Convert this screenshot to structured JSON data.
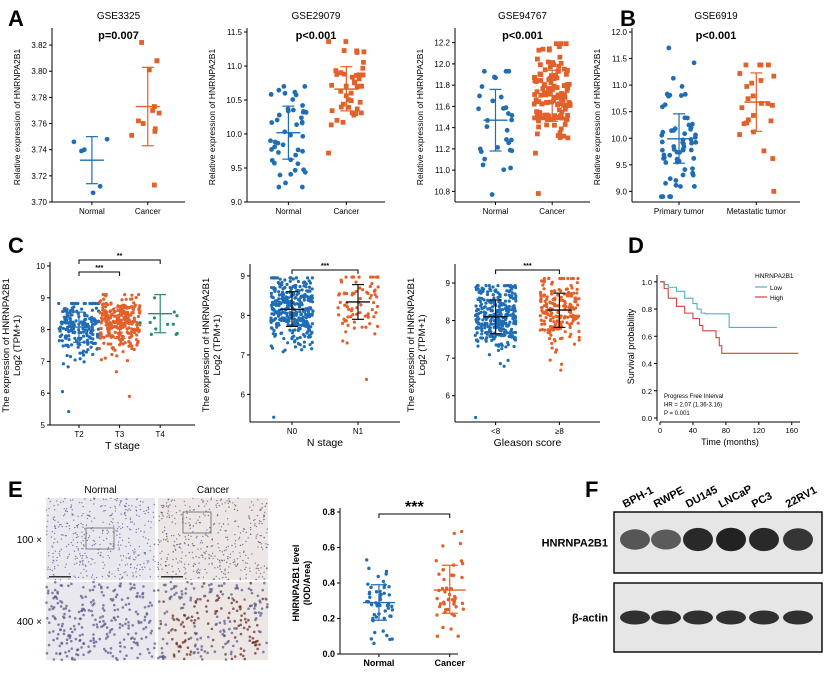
{
  "panel_letters": [
    "A",
    "B",
    "C",
    "D",
    "E",
    "F"
  ],
  "colors": {
    "blue": "#1f6db5",
    "orange": "#e2612a",
    "green": "#2a8c6e",
    "low": "#4fb3bf",
    "high": "#c9473f"
  },
  "chart_data": [
    {
      "id": "A1",
      "type": "scatter",
      "title": "GSE3325",
      "annotation": "p=0.007",
      "ylabel": "Relative expression of HNRNPA2B1",
      "ylim": [
        3.7,
        3.83
      ],
      "yticks": [
        3.7,
        3.72,
        3.74,
        3.76,
        3.78,
        3.8,
        3.82
      ],
      "groups": [
        {
          "name": "Normal",
          "color": "blue",
          "mean": 3.732,
          "err": [
            3.714,
            3.75
          ],
          "points": [
            3.746,
            3.748,
            3.74,
            3.739,
            3.712,
            3.707
          ]
        },
        {
          "name": "Cancer",
          "color": "orange",
          "mean": 3.773,
          "err": [
            3.743,
            3.803
          ],
          "points": [
            3.822,
            3.808,
            3.808,
            3.801,
            3.773,
            3.77,
            3.768,
            3.762,
            3.76,
            3.756,
            3.754,
            3.751,
            3.713
          ]
        }
      ]
    },
    {
      "id": "A2",
      "type": "scatter",
      "title": "GSE29079",
      "annotation": "p<0.001",
      "ylabel": "Relative expression of HNRNPA2B1",
      "ylim": [
        9.0,
        11.5
      ],
      "yticks": [
        9.0,
        9.5,
        10.0,
        10.5,
        11.0,
        11.5
      ],
      "groups": [
        {
          "name": "Normal",
          "color": "blue",
          "mean": 10.02,
          "err": [
            9.63,
            10.41
          ],
          "n": 47,
          "range": [
            9.22,
            10.7
          ]
        },
        {
          "name": "Cancer",
          "color": "orange",
          "mean": 10.66,
          "err": [
            10.34,
            10.99
          ],
          "n": 45,
          "range": [
            9.72,
            11.36
          ]
        }
      ]
    },
    {
      "id": "A3",
      "type": "scatter",
      "title": "GSE94767",
      "annotation": "p<0.001",
      "ylabel": "Relative expression of HNRNPA2B1",
      "ylim": [
        10.7,
        12.3
      ],
      "yticks": [
        10.8,
        11.0,
        11.2,
        11.4,
        11.6,
        11.8,
        12.0,
        12.2
      ],
      "groups": [
        {
          "name": "Normal",
          "color": "blue",
          "mean": 11.47,
          "err": [
            11.18,
            11.76
          ],
          "n": 31,
          "range": [
            10.77,
            11.93
          ]
        },
        {
          "name": "Cancer",
          "color": "orange",
          "mean": 11.7,
          "err": [
            11.46,
            11.94
          ],
          "n": 130,
          "range": [
            10.78,
            12.19
          ]
        }
      ]
    },
    {
      "id": "B",
      "type": "scatter",
      "title": "GSE6919",
      "annotation": "p<0.001",
      "ylabel": "Relative expression of HNRNPA2B1",
      "ylim": [
        8.8,
        12.0
      ],
      "yticks": [
        9.0,
        9.5,
        10.0,
        10.5,
        11.0,
        11.5,
        12.0
      ],
      "groups": [
        {
          "name": "Primary tumor",
          "color": "blue",
          "mean": 9.99,
          "err": [
            9.53,
            10.46
          ],
          "n": 65,
          "range": [
            8.9,
            11.7
          ]
        },
        {
          "name": "Metastatic tumor",
          "color": "orange",
          "mean": 10.68,
          "err": [
            10.13,
            11.23
          ],
          "n": 25,
          "range": [
            9.0,
            11.38
          ]
        }
      ]
    },
    {
      "id": "C1",
      "type": "scatter",
      "xlabel": "T stage",
      "ylabel": "The expression of HNRNPA2B1",
      "ylabel2": "Log2 (TPM+1)",
      "ylim": [
        5,
        10
      ],
      "yticks": [
        5,
        6,
        7,
        8,
        9,
        10
      ],
      "groups": [
        {
          "name": "T2",
          "color": "blue",
          "mean": 8.08,
          "err": [
            7.6,
            8.55
          ],
          "n": 190,
          "range": [
            5.42,
            8.82
          ]
        },
        {
          "name": "T3",
          "color": "orange",
          "mean": 8.2,
          "err": [
            7.72,
            8.68
          ],
          "n": 250,
          "range": [
            5.9,
            9.1
          ]
        },
        {
          "name": "T4",
          "color": "green",
          "mean": 8.5,
          "err": [
            7.9,
            9.1
          ],
          "n": 12,
          "range": [
            7.85,
            9.0
          ]
        }
      ],
      "significance": [
        {
          "from": 0,
          "to": 1,
          "label": "***"
        },
        {
          "from": 0,
          "to": 2,
          "label": "**"
        }
      ]
    },
    {
      "id": "C2",
      "type": "scatter",
      "xlabel": "N stage",
      "ylabel": "The expression of HNRNPA2B1",
      "ylabel2": "Log2 (TPM+1)",
      "ylim": [
        5.3,
        9.2
      ],
      "yticks": [
        6,
        7,
        8,
        9
      ],
      "groups": [
        {
          "name": "N0",
          "color": "blue",
          "mean": 8.15,
          "err": [
            7.72,
            8.6
          ],
          "n": 340,
          "range": [
            5.42,
            8.95
          ]
        },
        {
          "name": "N1",
          "color": "orange",
          "mean": 8.34,
          "err": [
            7.9,
            8.78
          ],
          "n": 80,
          "range": [
            6.38,
            8.97
          ]
        }
      ],
      "significance": [
        {
          "from": 0,
          "to": 1,
          "label": "***"
        }
      ]
    },
    {
      "id": "C3",
      "type": "scatter",
      "xlabel": "Gleason score",
      "ylabel": "The expression of HNRNPA2B1",
      "ylabel2": "Log2 (TPM+1)",
      "ylim": [
        5.3,
        9.4
      ],
      "yticks": [
        6,
        7,
        8,
        9
      ],
      "groups": [
        {
          "name": "<8",
          "color": "blue",
          "mean": 8.1,
          "err": [
            7.65,
            8.55
          ],
          "n": 300,
          "range": [
            5.42,
            8.93
          ]
        },
        {
          "name": "≥8",
          "color": "orange",
          "mean": 8.28,
          "err": [
            7.82,
            8.73
          ],
          "n": 200,
          "range": [
            6.68,
            9.12
          ]
        }
      ],
      "significance": [
        {
          "from": 0,
          "to": 1,
          "label": "***"
        }
      ]
    },
    {
      "id": "D",
      "type": "line",
      "xlabel": "Time (months)",
      "ylabel": "Survival probability",
      "xlim": [
        0,
        170
      ],
      "ylim": [
        0,
        1.05
      ],
      "xticks": [
        0,
        40,
        80,
        120,
        160
      ],
      "yticks": [
        0.0,
        0.2,
        0.4,
        0.6,
        0.8,
        1.0
      ],
      "legend_title": "HNRNPA2B1",
      "legend_position": "top-right",
      "series": [
        {
          "name": "Low",
          "color": "low",
          "x": [
            0,
            5,
            10,
            20,
            30,
            40,
            45,
            50,
            55,
            82,
            84,
            142
          ],
          "y": [
            1,
            0.98,
            0.96,
            0.93,
            0.88,
            0.84,
            0.8,
            0.77,
            0.765,
            0.765,
            0.665,
            0.665
          ]
        },
        {
          "name": "High",
          "color": "high",
          "x": [
            0,
            5,
            10,
            20,
            30,
            40,
            48,
            52,
            65,
            68,
            72,
            75,
            168
          ],
          "y": [
            1,
            0.95,
            0.88,
            0.82,
            0.77,
            0.73,
            0.68,
            0.64,
            0.64,
            0.59,
            0.53,
            0.475,
            0.475
          ]
        }
      ],
      "annotations": [
        "Progress Free Interval",
        "HR = 2.07 (1.36-3.16)",
        "P = 0.001"
      ]
    },
    {
      "id": "E",
      "type": "scatter",
      "ylabel": "HNRNPA2B1 level",
      "ylabel2": "(IOD/Area)",
      "ylim": [
        0,
        0.8
      ],
      "yticks": [
        0.0,
        0.2,
        0.4,
        0.6,
        0.8
      ],
      "groups": [
        {
          "name": "Normal",
          "color": "blue",
          "mean": 0.29,
          "err": [
            0.19,
            0.39
          ],
          "n": 50,
          "range": [
            0.06,
            0.53
          ]
        },
        {
          "name": "Cancer",
          "color": "orange",
          "mean": 0.36,
          "err": [
            0.23,
            0.5
          ],
          "n": 50,
          "range": [
            0.1,
            0.69
          ]
        }
      ],
      "significance": [
        {
          "from": 0,
          "to": 1,
          "label": "***"
        }
      ]
    }
  ],
  "ihc": {
    "columns": [
      "Normal",
      "Cancer"
    ],
    "rows": [
      "100 ×",
      "400 ×"
    ]
  },
  "blot": {
    "lanes": [
      "BPH-1",
      "RWPE",
      "DU145",
      "LNCaP",
      "PC3",
      "22RV1"
    ],
    "targets": [
      "HNRNPA2B1",
      "β-actin"
    ],
    "intensity": {
      "HNRNPA2B1": [
        0.55,
        0.5,
        0.9,
        0.95,
        0.9,
        0.8
      ],
      "β-actin": [
        0.85,
        0.85,
        0.85,
        0.85,
        0.85,
        0.85
      ]
    }
  }
}
